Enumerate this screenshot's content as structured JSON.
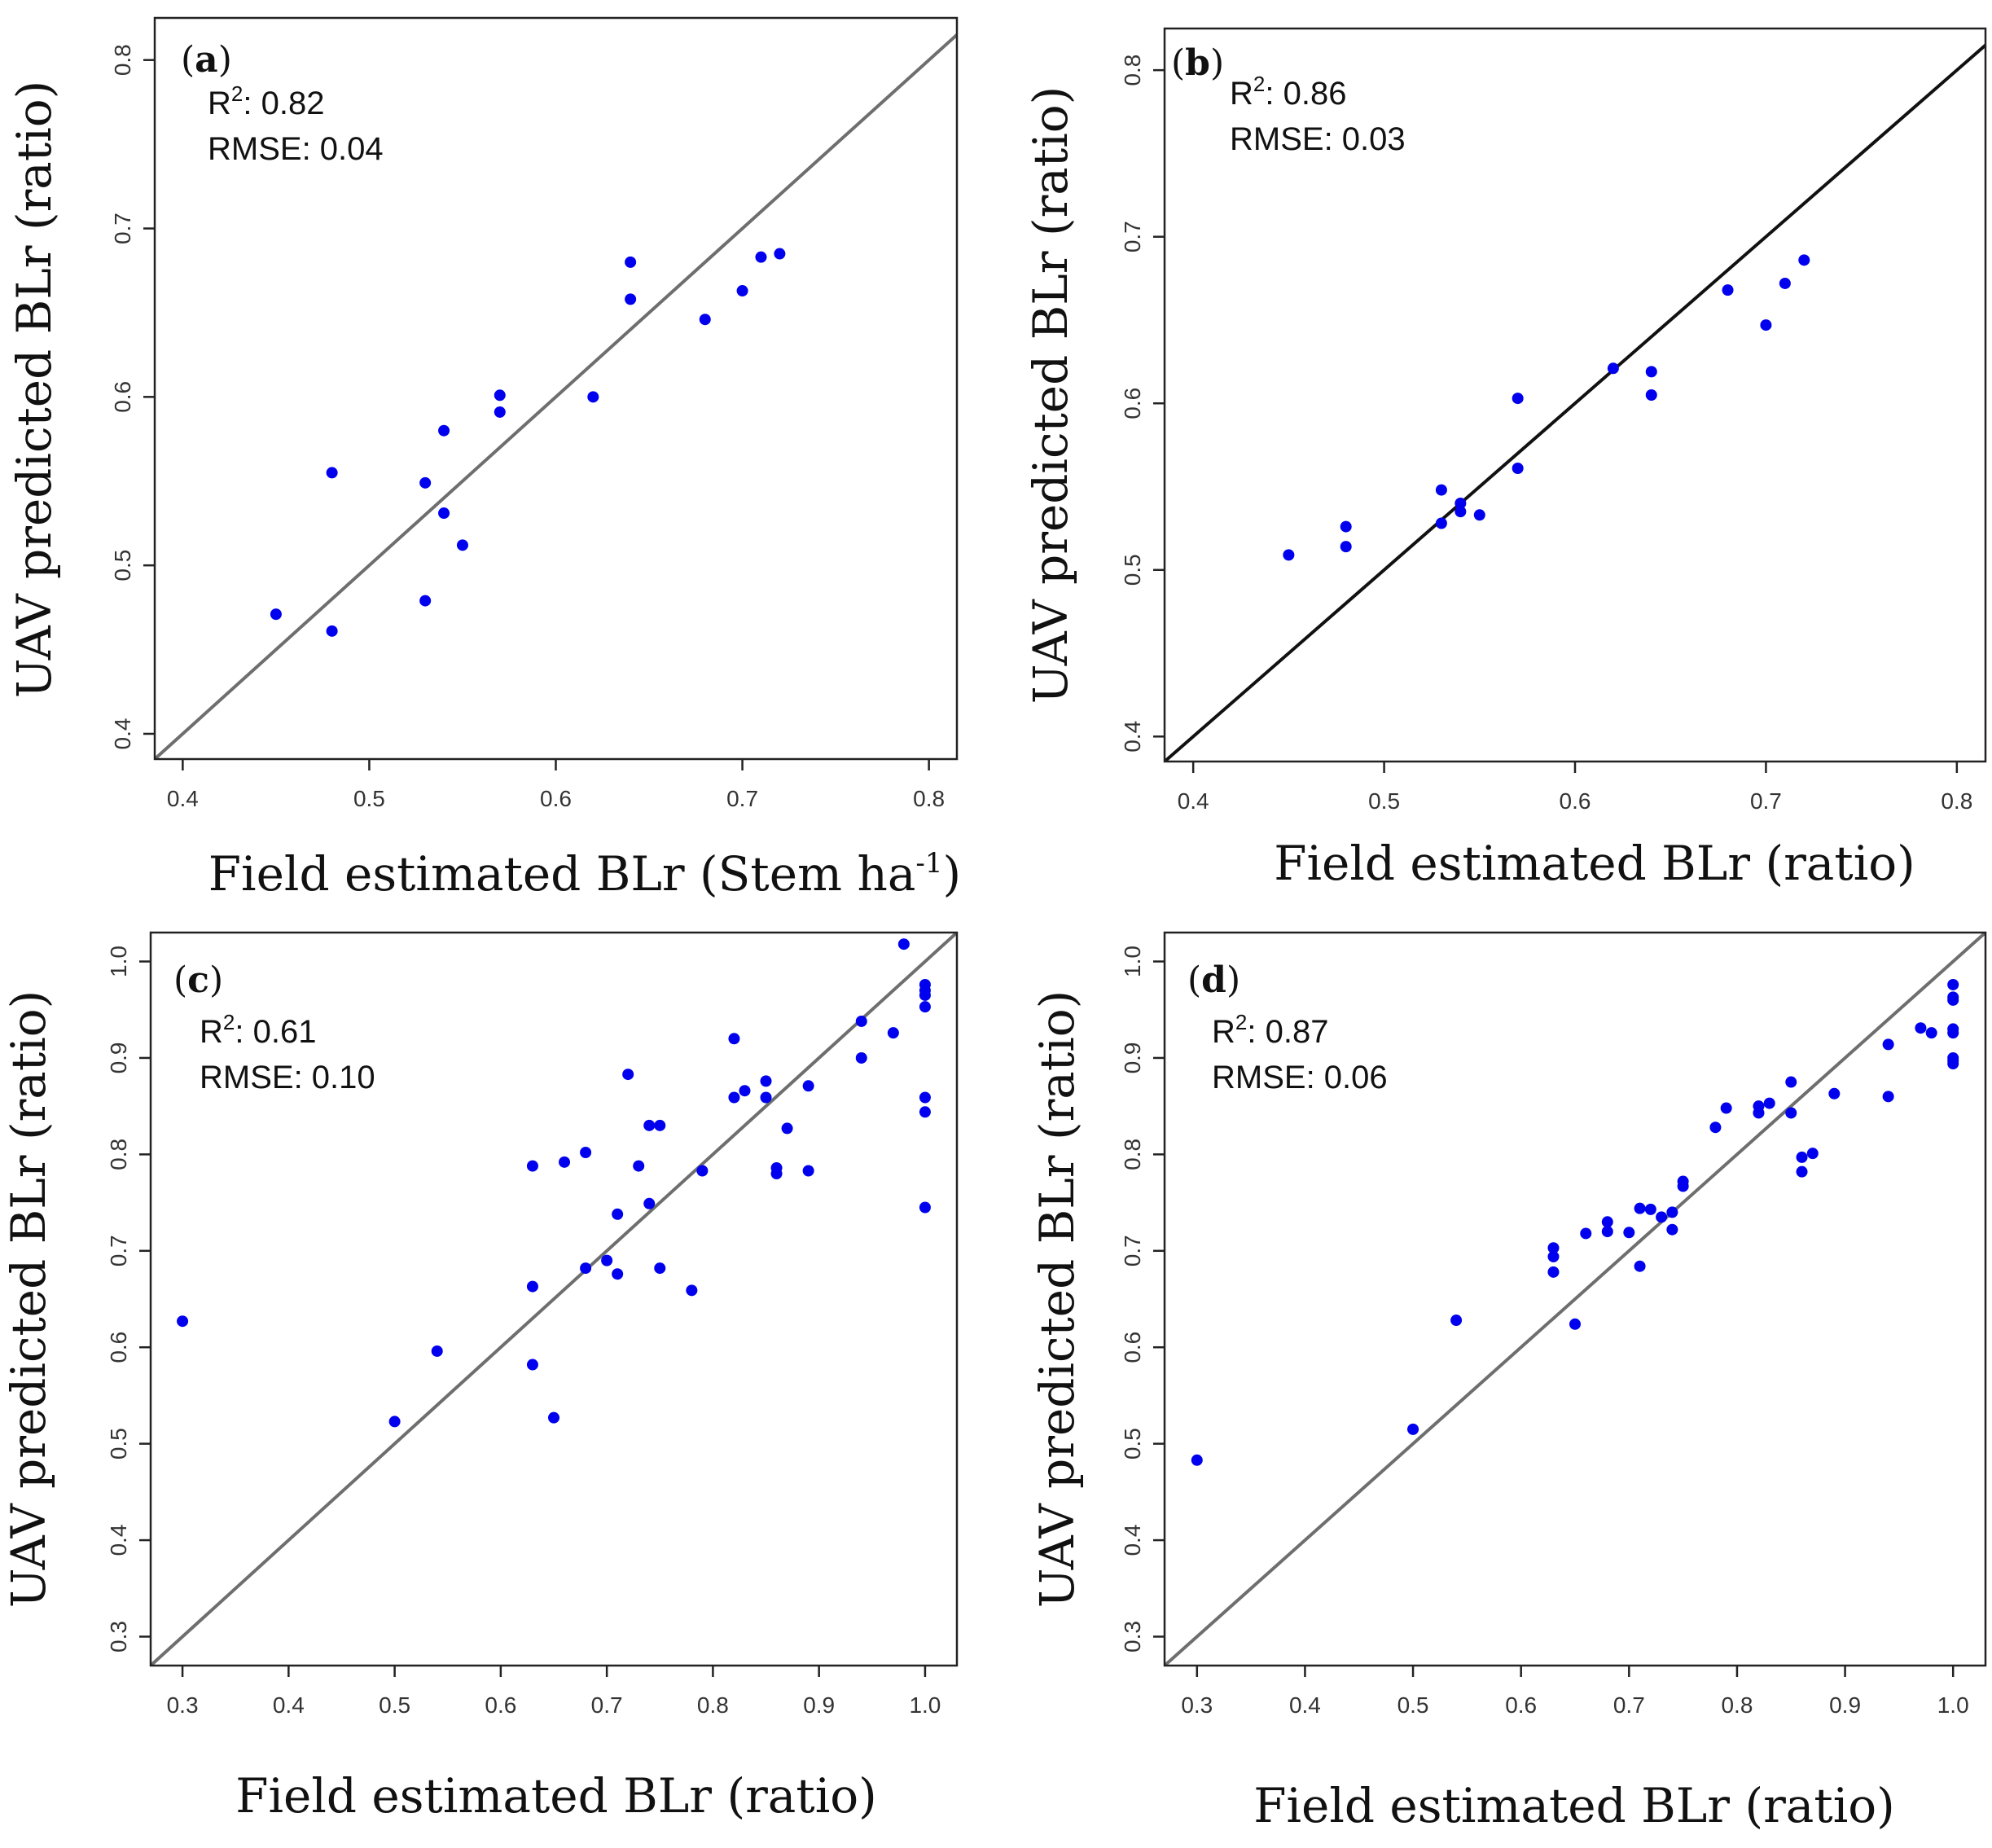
{
  "chart_data": [
    {
      "type": "scatter",
      "panel": "a",
      "xlabel": "Field estimated BLr (Stem ha",
      "xlabel_sup": "-1",
      "xlabel_suffix": ")",
      "ylabel": "UAV predicted BLr (ratio)",
      "stats": {
        "r2_label": "R",
        "r2_sup": "2",
        "r2_value": ": 0.82",
        "rmse": "RMSE: 0.04"
      },
      "xlim": [
        0.385,
        0.815
      ],
      "ylim": [
        0.385,
        0.825
      ],
      "xticks": [
        0.4,
        0.5,
        0.6,
        0.7,
        0.8
      ],
      "yticks": [
        0.4,
        0.5,
        0.6,
        0.7,
        0.8
      ],
      "xtick_labels": [
        "0.4",
        "0.5",
        "0.6",
        "0.7",
        "0.8"
      ],
      "ytick_labels": [
        "0.4",
        "0.5",
        "0.6",
        "0.7",
        "0.8"
      ],
      "line_color": "#6e6e6e",
      "point_color": "#0000ee",
      "x": [
        0.45,
        0.48,
        0.48,
        0.53,
        0.53,
        0.54,
        0.54,
        0.55,
        0.57,
        0.57,
        0.62,
        0.64,
        0.64,
        0.68,
        0.7,
        0.71,
        0.72
      ],
      "y": [
        0.471,
        0.461,
        0.555,
        0.479,
        0.549,
        0.531,
        0.58,
        0.512,
        0.601,
        0.591,
        0.6,
        0.68,
        0.658,
        0.646,
        0.663,
        0.683,
        0.685
      ]
    },
    {
      "type": "scatter",
      "panel": "b",
      "xlabel": "Field estimated BLr (ratio)",
      "ylabel": "UAV predicted BLr (ratio)",
      "stats": {
        "r2_label": "R",
        "r2_sup": "2",
        "r2_value": ": 0.86",
        "rmse": "RMSE: 0.03"
      },
      "xlim": [
        0.385,
        0.815
      ],
      "ylim": [
        0.385,
        0.825
      ],
      "xticks": [
        0.4,
        0.5,
        0.6,
        0.7,
        0.8
      ],
      "yticks": [
        0.4,
        0.5,
        0.6,
        0.7,
        0.8
      ],
      "xtick_labels": [
        "0.4",
        "0.5",
        "0.6",
        "0.7",
        "0.8"
      ],
      "ytick_labels": [
        "0.4",
        "0.5",
        "0.6",
        "0.7",
        "0.8"
      ],
      "line_color": "#111111",
      "point_color": "#0000ee",
      "x": [
        0.45,
        0.48,
        0.48,
        0.53,
        0.53,
        0.54,
        0.54,
        0.55,
        0.57,
        0.57,
        0.62,
        0.64,
        0.64,
        0.68,
        0.7,
        0.71,
        0.72
      ],
      "y": [
        0.509,
        0.514,
        0.526,
        0.528,
        0.548,
        0.535,
        0.54,
        0.533,
        0.603,
        0.561,
        0.621,
        0.619,
        0.605,
        0.668,
        0.647,
        0.672,
        0.686
      ]
    },
    {
      "type": "scatter",
      "panel": "c",
      "xlabel": "Field estimated BLr (ratio)",
      "ylabel": "UAV predicted BLr (ratio)",
      "stats": {
        "r2_label": "R",
        "r2_sup": "2",
        "r2_value": ": 0.61",
        "rmse": "RMSE: 0.10"
      },
      "xlim": [
        0.27,
        1.03
      ],
      "ylim": [
        0.27,
        1.03
      ],
      "xticks": [
        0.3,
        0.4,
        0.5,
        0.6,
        0.7,
        0.8,
        0.9,
        1.0
      ],
      "yticks": [
        0.3,
        0.4,
        0.5,
        0.6,
        0.7,
        0.8,
        0.9,
        1.0
      ],
      "xtick_labels": [
        "0.3",
        "0.4",
        "0.5",
        "0.6",
        "0.7",
        "0.8",
        "0.9",
        "1.0"
      ],
      "ytick_labels": [
        "0.3",
        "0.4",
        "0.5",
        "0.6",
        "0.7",
        "0.8",
        "0.9",
        "1.0"
      ],
      "line_color": "#6e6e6e",
      "point_color": "#0000ee",
      "x": [
        0.3,
        0.5,
        0.54,
        0.63,
        0.63,
        0.63,
        0.65,
        0.66,
        0.68,
        0.68,
        0.7,
        0.71,
        0.71,
        0.72,
        0.73,
        0.74,
        0.74,
        0.75,
        0.75,
        0.78,
        0.79,
        0.82,
        0.82,
        0.83,
        0.85,
        0.85,
        0.86,
        0.86,
        0.87,
        0.89,
        0.89,
        0.94,
        0.94,
        0.97,
        0.98,
        1.0,
        1.0,
        1.0,
        1.0,
        1.0,
        1.0,
        1.0
      ],
      "y": [
        0.627,
        0.523,
        0.596,
        0.788,
        0.663,
        0.582,
        0.527,
        0.792,
        0.802,
        0.682,
        0.69,
        0.738,
        0.676,
        0.883,
        0.788,
        0.749,
        0.83,
        0.83,
        0.682,
        0.659,
        0.783,
        0.92,
        0.859,
        0.866,
        0.876,
        0.859,
        0.786,
        0.78,
        0.827,
        0.871,
        0.783,
        0.938,
        0.9,
        0.926,
        1.018,
        0.976,
        0.97,
        0.965,
        0.953,
        0.859,
        0.844,
        0.745
      ]
    },
    {
      "type": "scatter",
      "panel": "d",
      "xlabel": "Field estimated BLr (ratio)",
      "ylabel": "UAV predicted BLr (ratio)",
      "stats": {
        "r2_label": "R",
        "r2_sup": "2",
        "r2_value": ": 0.87",
        "rmse": "RMSE: 0.06"
      },
      "xlim": [
        0.27,
        1.03
      ],
      "ylim": [
        0.27,
        1.03
      ],
      "xticks": [
        0.3,
        0.4,
        0.5,
        0.6,
        0.7,
        0.8,
        0.9,
        1.0
      ],
      "yticks": [
        0.3,
        0.4,
        0.5,
        0.6,
        0.7,
        0.8,
        0.9,
        1.0
      ],
      "xtick_labels": [
        "0.3",
        "0.4",
        "0.5",
        "0.6",
        "0.7",
        "0.8",
        "0.9",
        "1.0"
      ],
      "ytick_labels": [
        "0.3",
        "0.4",
        "0.5",
        "0.6",
        "0.7",
        "0.8",
        "0.9",
        "1.0"
      ],
      "line_color": "#6e6e6e",
      "point_color": "#0000ee",
      "x": [
        0.3,
        0.5,
        0.54,
        0.63,
        0.63,
        0.63,
        0.65,
        0.66,
        0.68,
        0.68,
        0.7,
        0.71,
        0.71,
        0.72,
        0.73,
        0.74,
        0.74,
        0.75,
        0.75,
        0.78,
        0.79,
        0.82,
        0.82,
        0.83,
        0.85,
        0.85,
        0.86,
        0.86,
        0.87,
        0.89,
        0.94,
        0.94,
        0.97,
        0.98,
        1.0,
        1.0,
        1.0,
        1.0,
        1.0,
        1.0,
        1.0,
        1.0
      ],
      "y": [
        0.483,
        0.515,
        0.628,
        0.703,
        0.694,
        0.678,
        0.624,
        0.718,
        0.73,
        0.72,
        0.719,
        0.744,
        0.684,
        0.743,
        0.735,
        0.74,
        0.722,
        0.772,
        0.767,
        0.828,
        0.848,
        0.85,
        0.843,
        0.853,
        0.875,
        0.843,
        0.797,
        0.782,
        0.801,
        0.863,
        0.914,
        0.86,
        0.931,
        0.926,
        0.976,
        0.963,
        0.96,
        0.93,
        0.926,
        0.9,
        0.897,
        0.894
      ]
    }
  ]
}
